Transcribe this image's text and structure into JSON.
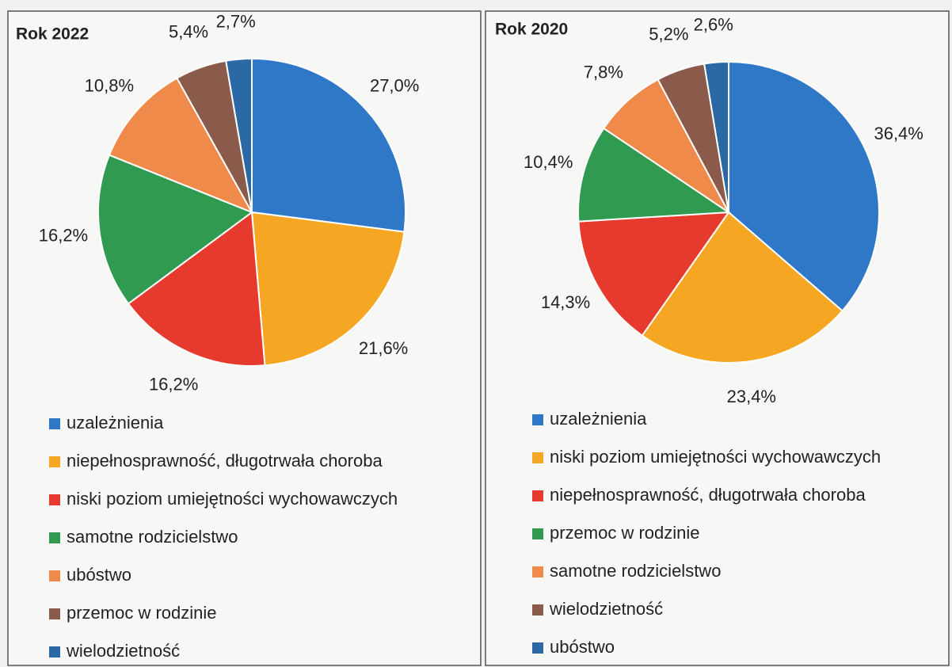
{
  "chart_data": [
    {
      "type": "pie",
      "title": "Rok 2022",
      "categories": [
        "uzależnienia",
        "niepełnosprawność, długotrwała choroba",
        "niski poziom umiejętności wychowawczych",
        "samotne rodzicielstwo",
        "ubóstwo",
        "przemoc w rodzinie",
        "wielodzietność"
      ],
      "values": [
        27.0,
        21.6,
        16.2,
        16.2,
        10.8,
        5.4,
        2.7
      ],
      "value_labels": [
        "27,0%",
        "21,6%",
        "16,2%",
        "16,2%",
        "10,8%",
        "5,4%",
        "2,7%"
      ],
      "colors": [
        "#2f78c8",
        "#f5a623",
        "#e63a2e",
        "#2f9a50",
        "#f08a4b",
        "#8a5a4b",
        "#2b68a6"
      ],
      "legend": "bottom"
    },
    {
      "type": "pie",
      "title": "Rok 2020",
      "categories": [
        "uzależnienia",
        "niski poziom umiejętności wychowawczych",
        "niepełnosprawność, długotrwała choroba",
        "przemoc w rodzinie",
        "samotne rodzicielstwo",
        "wielodzietność",
        "ubóstwo"
      ],
      "values": [
        36.4,
        23.4,
        14.3,
        10.4,
        7.8,
        5.2,
        2.6
      ],
      "value_labels": [
        "36,4%",
        "23,4%",
        "14,3%",
        "10,4%",
        "7,8%",
        "5,2%",
        "2,6%"
      ],
      "colors": [
        "#2f78c8",
        "#f5a623",
        "#e63a2e",
        "#2f9a50",
        "#f08a4b",
        "#8a5a4b",
        "#2b68a6"
      ],
      "legend": "bottom"
    }
  ]
}
